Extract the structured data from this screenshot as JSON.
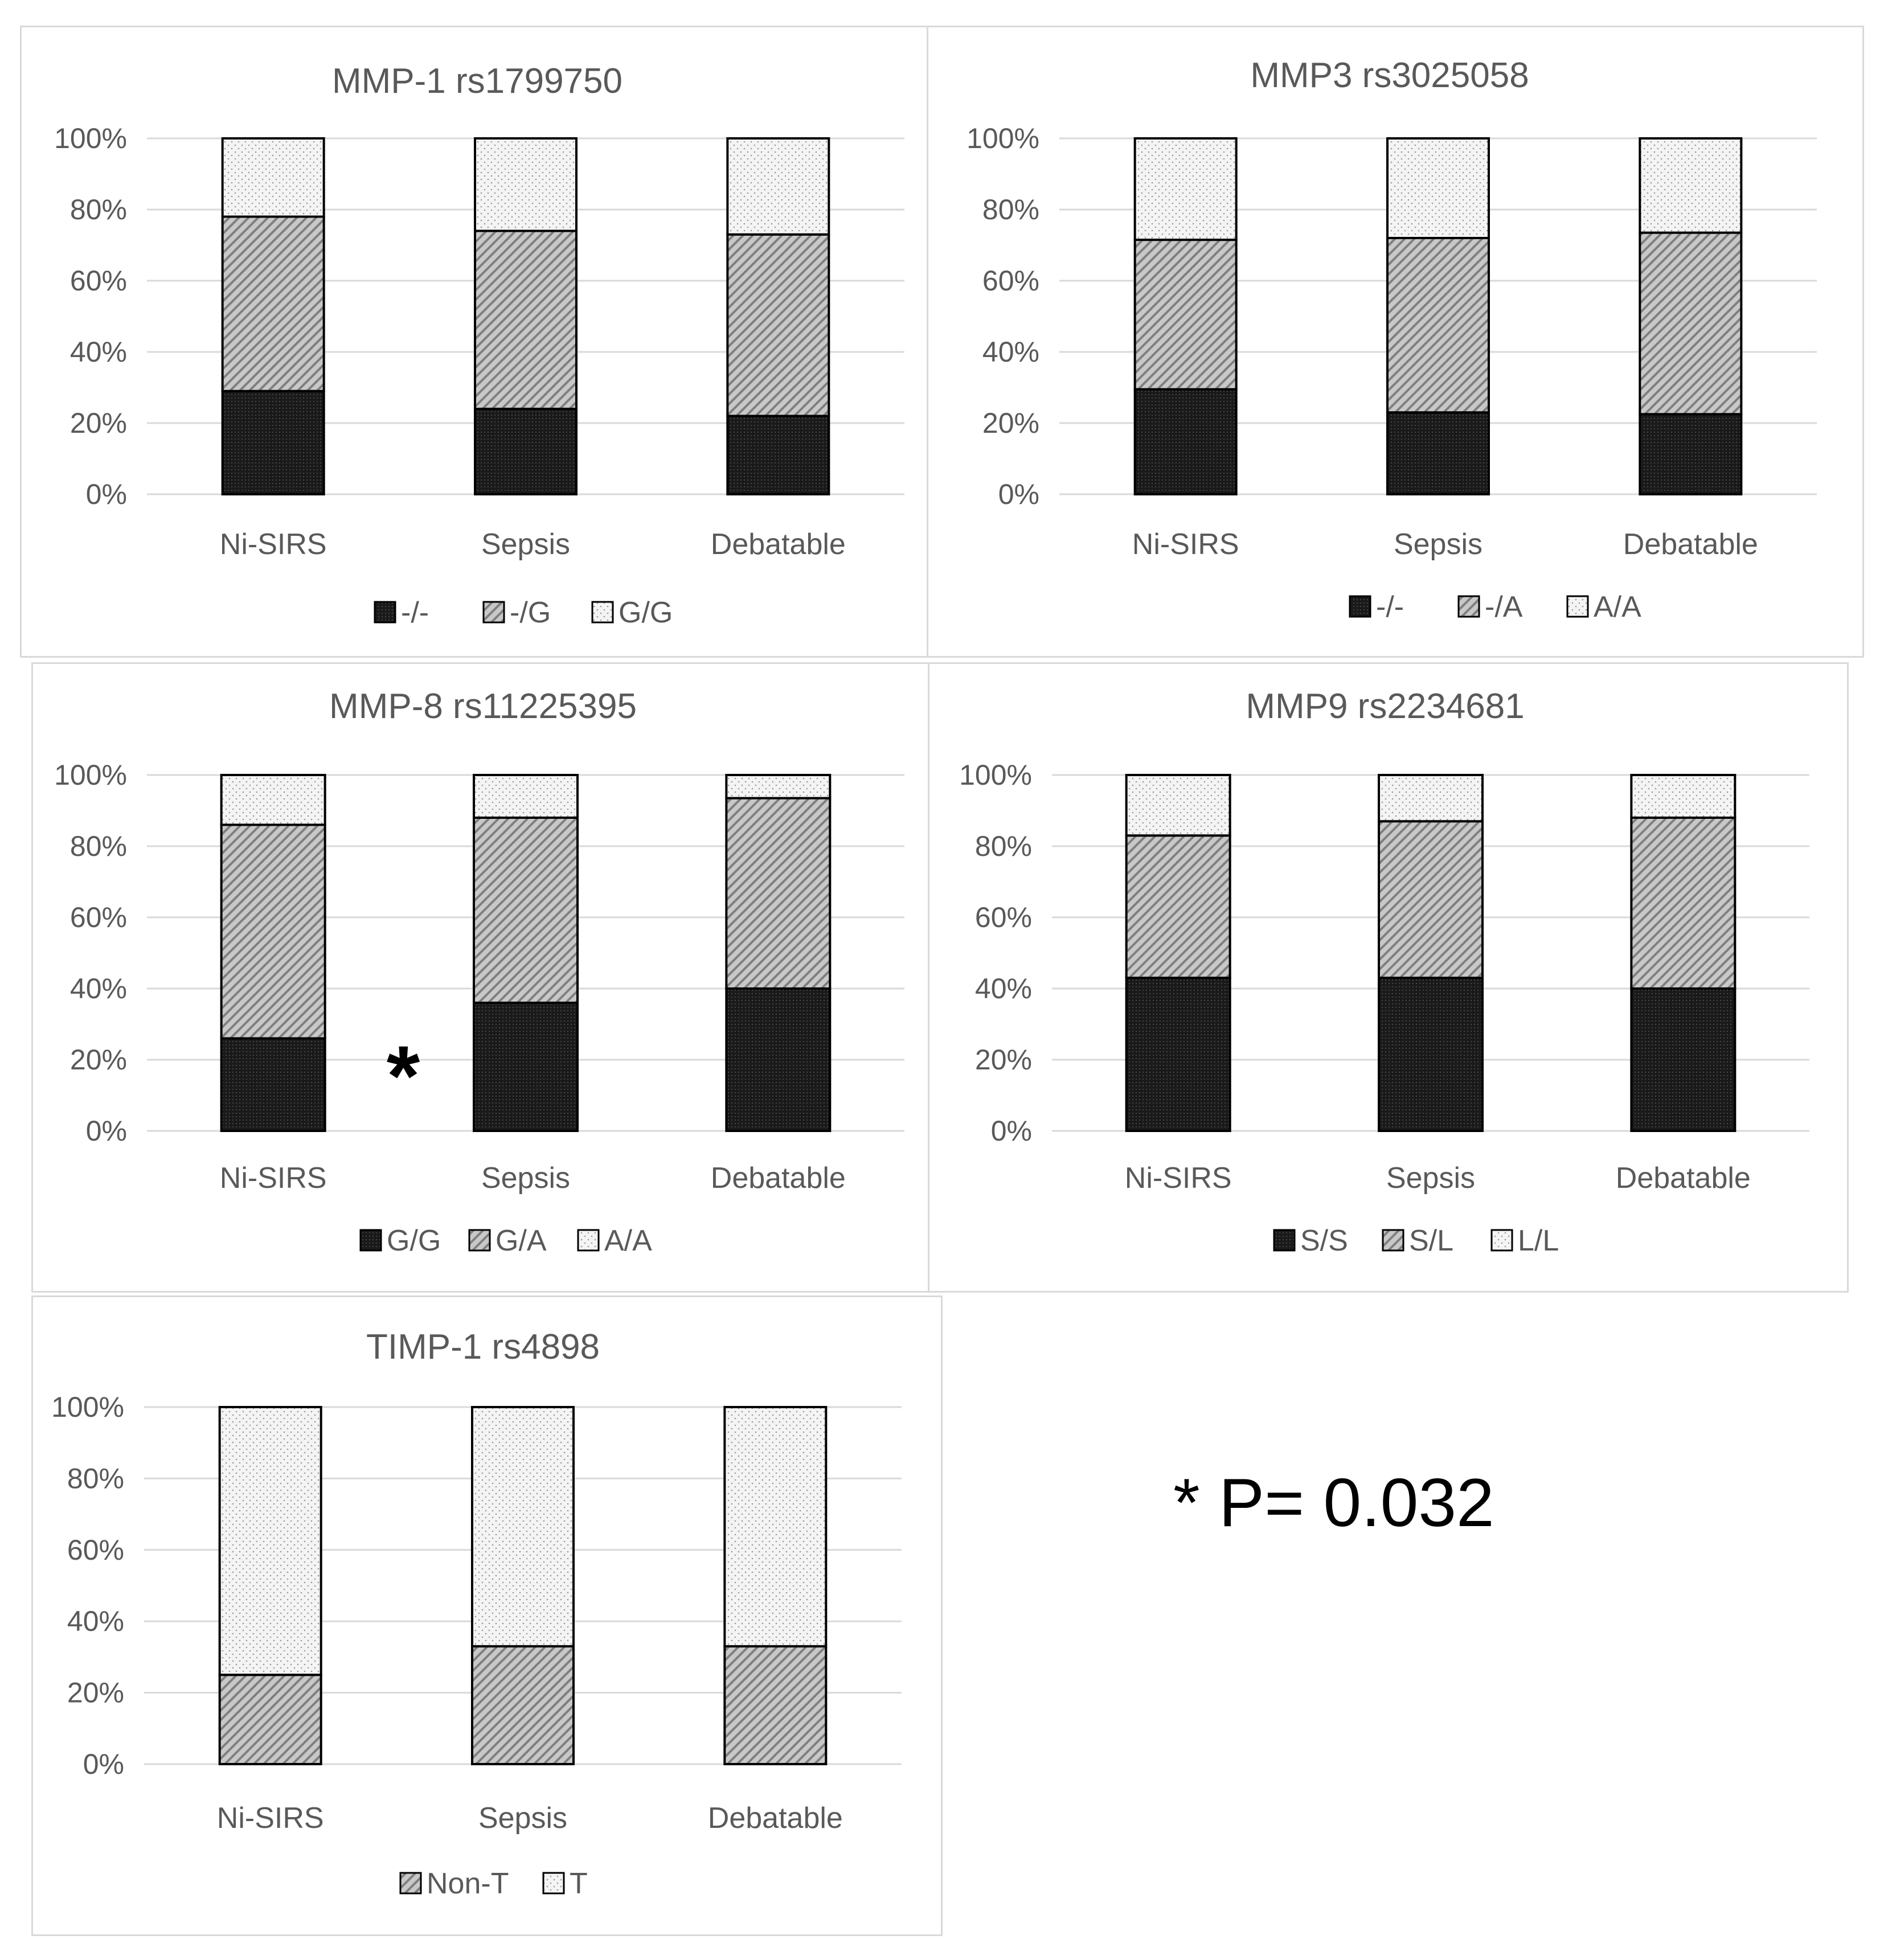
{
  "annotation": "* P= 0.032",
  "styles": {
    "grid_color": "#d9d9d9",
    "text_color": "#595959",
    "bar_outline": "#000000",
    "bottom_fill": "#1a1a1a",
    "middle_fill": "#c8c8c8",
    "top_fill": "#f4f4f4"
  },
  "chart_data": [
    {
      "type": "bar",
      "stacked": true,
      "title": "MMP-1 rs1799750",
      "categories": [
        "Ni-SIRS",
        "Sepsis",
        "Debatable"
      ],
      "ylim": [
        0,
        100
      ],
      "yticks": [
        "0%",
        "20%",
        "40%",
        "60%",
        "80%",
        "100%"
      ],
      "series": [
        {
          "name": "-/-",
          "pattern": "bottom",
          "values": [
            29,
            24,
            22
          ]
        },
        {
          "name": "-/G",
          "pattern": "middle",
          "values": [
            49,
            50,
            51
          ]
        },
        {
          "name": "G/G",
          "pattern": "top",
          "values": [
            22,
            26,
            27
          ]
        }
      ]
    },
    {
      "type": "bar",
      "stacked": true,
      "title": "MMP3 rs3025058",
      "categories": [
        "Ni-SIRS",
        "Sepsis",
        "Debatable"
      ],
      "ylim": [
        0,
        100
      ],
      "yticks": [
        "0%",
        "20%",
        "40%",
        "60%",
        "80%",
        "100%"
      ],
      "series": [
        {
          "name": "-/-",
          "pattern": "bottom",
          "values": [
            29.5,
            23,
            22.5
          ]
        },
        {
          "name": "-/A",
          "pattern": "middle",
          "values": [
            42,
            49,
            51
          ]
        },
        {
          "name": "A/A",
          "pattern": "top",
          "values": [
            28.5,
            28,
            26.5
          ]
        }
      ]
    },
    {
      "type": "bar",
      "stacked": true,
      "title": "MMP-8 rs11225395",
      "categories": [
        "Ni-SIRS",
        "Sepsis",
        "Debatable"
      ],
      "ylim": [
        0,
        100
      ],
      "yticks": [
        "0%",
        "20%",
        "40%",
        "60%",
        "80%",
        "100%"
      ],
      "annotation_mark": "*",
      "series": [
        {
          "name": "G/G",
          "pattern": "bottom",
          "values": [
            26,
            36,
            40
          ]
        },
        {
          "name": "G/A",
          "pattern": "middle",
          "values": [
            60,
            52,
            53.5
          ]
        },
        {
          "name": "A/A",
          "pattern": "top",
          "values": [
            14,
            12,
            6.5
          ]
        }
      ]
    },
    {
      "type": "bar",
      "stacked": true,
      "title": "MMP9 rs2234681",
      "categories": [
        "Ni-SIRS",
        "Sepsis",
        "Debatable"
      ],
      "ylim": [
        0,
        100
      ],
      "yticks": [
        "0%",
        "20%",
        "40%",
        "60%",
        "80%",
        "100%"
      ],
      "series": [
        {
          "name": "S/S",
          "pattern": "bottom",
          "values": [
            43,
            43,
            40
          ]
        },
        {
          "name": "S/L",
          "pattern": "middle",
          "values": [
            40,
            44,
            48
          ]
        },
        {
          "name": "L/L",
          "pattern": "top",
          "values": [
            17,
            13,
            12
          ]
        }
      ]
    },
    {
      "type": "bar",
      "stacked": true,
      "title": "TIMP-1 rs4898",
      "categories": [
        "Ni-SIRS",
        "Sepsis",
        "Debatable"
      ],
      "ylim": [
        0,
        100
      ],
      "yticks": [
        "0%",
        "20%",
        "40%",
        "60%",
        "80%",
        "100%"
      ],
      "series": [
        {
          "name": "Non-T",
          "pattern": "middle",
          "values": [
            25,
            33,
            33
          ]
        },
        {
          "name": "T",
          "pattern": "top",
          "values": [
            75,
            67,
            67
          ]
        }
      ]
    }
  ]
}
